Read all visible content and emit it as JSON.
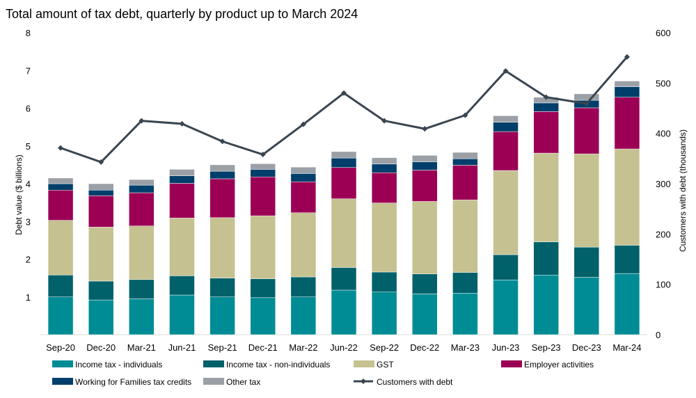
{
  "chart_data": {
    "type": "bar",
    "stacked": true,
    "title": "Total amount of tax debt, quarterly by product up to March 2024",
    "ylabel": "Debt value ($ billions)",
    "y2label": "Customers with debt (thousands)",
    "ylim": [
      0,
      8
    ],
    "y2lim": [
      0,
      600
    ],
    "yticks": [
      "1",
      "2",
      "3",
      "4",
      "5",
      "6",
      "7",
      "8"
    ],
    "y2ticks": [
      "0",
      "100",
      "200",
      "300",
      "400",
      "500",
      "600"
    ],
    "grid": false,
    "legend_position": "bottom",
    "categories": [
      "Sep-20",
      "Dec-20",
      "Mar-21",
      "Jun-21",
      "Sep-21",
      "Dec-21",
      "Mar-22",
      "Jun-22",
      "Sep-22",
      "Dec-22",
      "Mar-23",
      "Jun-23",
      "Sep-23",
      "Dec-23",
      "Mar-24"
    ],
    "series": [
      {
        "name": "Income tax - individuals",
        "color": "#008C95",
        "values": [
          1.0,
          0.92,
          0.95,
          1.05,
          1.0,
          0.98,
          1.0,
          1.18,
          1.13,
          1.08,
          1.1,
          1.45,
          1.58,
          1.52,
          1.62
        ]
      },
      {
        "name": "Income tax - non-individuals",
        "color": "#00616A",
        "values": [
          0.58,
          0.5,
          0.51,
          0.51,
          0.5,
          0.5,
          0.53,
          0.6,
          0.53,
          0.53,
          0.55,
          0.67,
          0.88,
          0.8,
          0.75
        ]
      },
      {
        "name": "GST",
        "color": "#C5C190",
        "values": [
          1.45,
          1.43,
          1.42,
          1.53,
          1.6,
          1.67,
          1.7,
          1.82,
          1.83,
          1.92,
          1.92,
          2.23,
          2.35,
          2.47,
          2.55
        ]
      },
      {
        "name": "Employer activities",
        "color": "#9B0055",
        "values": [
          0.8,
          0.83,
          0.88,
          0.92,
          1.03,
          1.03,
          0.82,
          0.83,
          0.8,
          0.83,
          0.92,
          1.03,
          1.1,
          1.22,
          1.37
        ]
      },
      {
        "name": "Working for Families tax credits",
        "color": "#003F6B",
        "values": [
          0.17,
          0.15,
          0.2,
          0.2,
          0.2,
          0.2,
          0.22,
          0.25,
          0.23,
          0.22,
          0.17,
          0.25,
          0.23,
          0.2,
          0.28
        ]
      },
      {
        "name": "Other tax",
        "color": "#9BA0A7",
        "values": [
          0.15,
          0.17,
          0.15,
          0.17,
          0.17,
          0.15,
          0.17,
          0.17,
          0.17,
          0.17,
          0.17,
          0.17,
          0.15,
          0.17,
          0.15
        ]
      }
    ],
    "line_series": {
      "name": "Customers with debt",
      "color": "#3A4550",
      "axis": "right",
      "values": [
        371,
        343,
        425,
        419,
        384,
        358,
        418,
        480,
        425,
        409,
        436,
        524,
        472,
        459,
        552
      ]
    }
  }
}
